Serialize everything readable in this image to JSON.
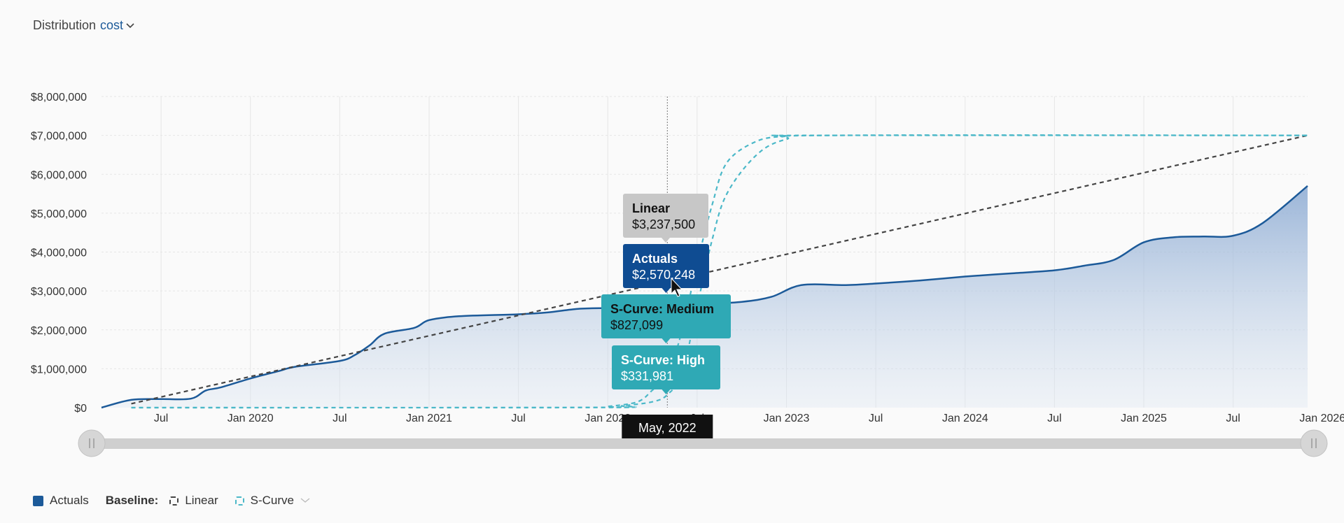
{
  "header": {
    "label": "Distribution",
    "metric": "cost"
  },
  "legend": {
    "actuals": "Actuals",
    "baseline_label": "Baseline:",
    "linear": "Linear",
    "scurve": "S-Curve"
  },
  "colors": {
    "actuals": "#1c5a99",
    "linear": "#444444",
    "scurve": "#4bb8c8",
    "tooltip_linear": "#c7c7c7",
    "tooltip_actuals": "#0f4c92",
    "tooltip_scurve": "#2fa9b5",
    "crosshair_label": "#111111"
  },
  "chart_data": {
    "type": "area",
    "x_type": "date",
    "xlim": [
      "2019-03",
      "2025-12"
    ],
    "ylim": [
      0,
      8000000
    ],
    "y_ticks": [
      "$0",
      "$1,000,000",
      "$2,000,000",
      "$3,000,000",
      "$4,000,000",
      "$5,000,000",
      "$6,000,000",
      "$7,000,000",
      "$8,000,000"
    ],
    "x_ticks": [
      {
        "date": "2019-07",
        "label": "Jul"
      },
      {
        "date": "2020-01",
        "label": "Jan 2020"
      },
      {
        "date": "2020-07",
        "label": "Jul"
      },
      {
        "date": "2021-01",
        "label": "Jan 2021"
      },
      {
        "date": "2021-07",
        "label": "Jul"
      },
      {
        "date": "2022-01",
        "label": "Jan 2022"
      },
      {
        "date": "2022-07",
        "label": "Jul"
      },
      {
        "date": "2023-01",
        "label": "Jan 2023"
      },
      {
        "date": "2023-07",
        "label": "Jul"
      },
      {
        "date": "2024-01",
        "label": "Jan 2024"
      },
      {
        "date": "2024-07",
        "label": "Jul"
      },
      {
        "date": "2025-01",
        "label": "Jan 2025"
      },
      {
        "date": "2025-07",
        "label": "Jul"
      },
      {
        "date": "2026-01",
        "label": "Jan 2026"
      }
    ],
    "grid": true,
    "series": [
      {
        "name": "Actuals",
        "style": "solid-area",
        "points": [
          [
            "2019-03",
            0
          ],
          [
            "2019-05",
            200000
          ],
          [
            "2019-07",
            220000
          ],
          [
            "2019-09",
            230000
          ],
          [
            "2019-10",
            440000
          ],
          [
            "2019-11",
            520000
          ],
          [
            "2020-01",
            750000
          ],
          [
            "2020-03",
            950000
          ],
          [
            "2020-04",
            1050000
          ],
          [
            "2020-07",
            1200000
          ],
          [
            "2020-08",
            1350000
          ],
          [
            "2020-09",
            1600000
          ],
          [
            "2020-10",
            1900000
          ],
          [
            "2020-12",
            2050000
          ],
          [
            "2021-01",
            2250000
          ],
          [
            "2021-03",
            2350000
          ],
          [
            "2021-07",
            2400000
          ],
          [
            "2021-09",
            2450000
          ],
          [
            "2021-11",
            2540000
          ],
          [
            "2022-01",
            2560000
          ],
          [
            "2022-05",
            2570248
          ],
          [
            "2022-07",
            2650000
          ],
          [
            "2022-10",
            2720000
          ],
          [
            "2022-12",
            2850000
          ],
          [
            "2023-02",
            3150000
          ],
          [
            "2023-05",
            3150000
          ],
          [
            "2023-07",
            3190000
          ],
          [
            "2023-10",
            3270000
          ],
          [
            "2024-01",
            3370000
          ],
          [
            "2024-04",
            3450000
          ],
          [
            "2024-07",
            3530000
          ],
          [
            "2024-09",
            3650000
          ],
          [
            "2024-11",
            3800000
          ],
          [
            "2025-01",
            4250000
          ],
          [
            "2025-03",
            4380000
          ],
          [
            "2025-05",
            4400000
          ],
          [
            "2025-07",
            4420000
          ],
          [
            "2025-09",
            4750000
          ],
          [
            "2025-12",
            5700000
          ]
        ]
      },
      {
        "name": "Linear",
        "style": "dashed",
        "points": [
          [
            "2019-05",
            100000
          ],
          [
            "2025-12",
            7000000
          ]
        ]
      },
      {
        "name": "S-Curve: Medium",
        "style": "dashed",
        "points": [
          [
            "2019-05",
            0
          ],
          [
            "2021-12",
            5000
          ],
          [
            "2022-01",
            30000
          ],
          [
            "2022-03",
            150000
          ],
          [
            "2022-04",
            450000
          ],
          [
            "2022-05",
            827099
          ],
          [
            "2022-06",
            2000000
          ],
          [
            "2022-07",
            3700000
          ],
          [
            "2022-08",
            5200000
          ],
          [
            "2022-09",
            6300000
          ],
          [
            "2022-11",
            6850000
          ],
          [
            "2023-01",
            6980000
          ],
          [
            "2023-03",
            7000000
          ],
          [
            "2025-12",
            7000000
          ]
        ]
      },
      {
        "name": "S-Curve: High",
        "style": "dashed",
        "points": [
          [
            "2019-05",
            0
          ],
          [
            "2021-12",
            3000
          ],
          [
            "2022-02",
            50000
          ],
          [
            "2022-04",
            150000
          ],
          [
            "2022-05",
            331981
          ],
          [
            "2022-06",
            900000
          ],
          [
            "2022-07",
            2600000
          ],
          [
            "2022-08",
            4300000
          ],
          [
            "2022-09",
            5500000
          ],
          [
            "2022-11",
            6500000
          ],
          [
            "2023-01",
            6900000
          ],
          [
            "2023-04",
            7000000
          ],
          [
            "2025-12",
            7000000
          ]
        ]
      }
    ],
    "crosshair": {
      "date": "2022-05",
      "label": "May, 2022"
    },
    "tooltips": [
      {
        "title": "Linear",
        "value": "$3,237,500",
        "style": "linear"
      },
      {
        "title": "Actuals",
        "value": "$2,570,248",
        "style": "actuals"
      },
      {
        "title": "S-Curve: Medium",
        "value": "$827,099",
        "style": "scurve"
      },
      {
        "title": "S-Curve: High",
        "value": "$331,981",
        "style": "scurve"
      }
    ],
    "legend_position": "bottom-left"
  }
}
